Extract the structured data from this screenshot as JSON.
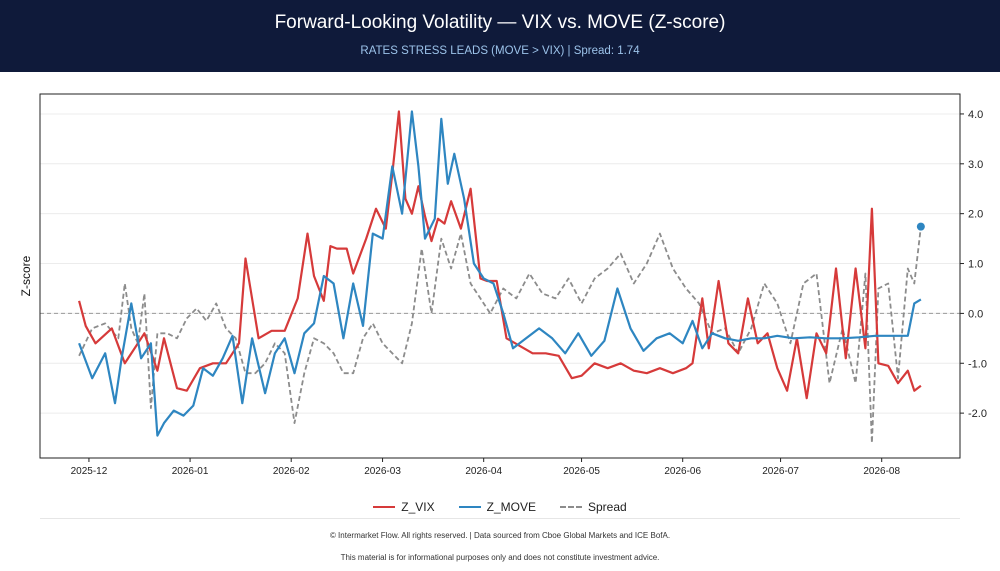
{
  "header": {
    "title": "Forward-Looking Volatility — VIX vs. MOVE (Z-score)",
    "subtitle": "RATES STRESS LEADS (MOVE > VIX)  |  Spread: 1.74"
  },
  "footer": {
    "line1": "© Intermarket Flow. All rights reserved.  |  Data sourced from Cboe Global Markets and ICE BofA.",
    "line2": "This material is for informational purposes only and does not constitute investment advice."
  },
  "chart_data": {
    "type": "line",
    "ylabel": "Z-score",
    "ylim": [
      -2.9,
      4.4
    ],
    "xlim": [
      "2025-11-16",
      "2026-08-25"
    ],
    "y_ticks": [
      "4.0",
      "3.0",
      "2.0",
      "1.0",
      "0.0",
      "-1.0",
      "-2.0"
    ],
    "y_tick_values": [
      4,
      3,
      2,
      1,
      0,
      -1,
      -2
    ],
    "x_ticks": [
      "2025-12",
      "2026-01",
      "2026-02",
      "2026-03",
      "2026-04",
      "2026-05",
      "2026-06",
      "2026-07",
      "2026-08"
    ],
    "x_tick_dates": [
      "2025-12-01",
      "2026-01-01",
      "2026-02-01",
      "2026-03-01",
      "2026-04-01",
      "2026-05-01",
      "2026-06-01",
      "2026-07-01",
      "2026-08-01"
    ],
    "grid": "horizontal",
    "y_axis_position": "right",
    "zero_line": true,
    "legend_position": "bottom",
    "series": [
      {
        "name": "Z_VIX",
        "color": "#d63a3a",
        "dash": false,
        "x": [
          "2025-11-28",
          "2025-11-30",
          "2025-12-03",
          "2025-12-08",
          "2025-12-12",
          "2025-12-16",
          "2025-12-18",
          "2025-12-22",
          "2025-12-24",
          "2025-12-28",
          "2025-12-31",
          "2026-01-04",
          "2026-01-08",
          "2026-01-12",
          "2026-01-16",
          "2026-01-18",
          "2026-01-22",
          "2026-01-26",
          "2026-01-30",
          "2026-02-03",
          "2026-02-06",
          "2026-02-08",
          "2026-02-11",
          "2026-02-13",
          "2026-02-15",
          "2026-02-18",
          "2026-02-20",
          "2026-02-24",
          "2026-02-27",
          "2026-03-02",
          "2026-03-04",
          "2026-03-06",
          "2026-03-08",
          "2026-03-10",
          "2026-03-12",
          "2026-03-14",
          "2026-03-16",
          "2026-03-18",
          "2026-03-20",
          "2026-03-22",
          "2026-03-25",
          "2026-03-28",
          "2026-03-31",
          "2026-04-02",
          "2026-04-05",
          "2026-04-08",
          "2026-04-12",
          "2026-04-16",
          "2026-04-20",
          "2026-04-24",
          "2026-04-28",
          "2026-05-01",
          "2026-05-05",
          "2026-05-09",
          "2026-05-13",
          "2026-05-17",
          "2026-05-21",
          "2026-05-25",
          "2026-05-29",
          "2026-06-02",
          "2026-06-04",
          "2026-06-07",
          "2026-06-09",
          "2026-06-12",
          "2026-06-15",
          "2026-06-18",
          "2026-06-21",
          "2026-06-24",
          "2026-06-27",
          "2026-06-30",
          "2026-07-03",
          "2026-07-06",
          "2026-07-09",
          "2026-07-12",
          "2026-07-15",
          "2026-07-18",
          "2026-07-21",
          "2026-07-24",
          "2026-07-27",
          "2026-07-29",
          "2026-07-31",
          "2026-08-03",
          "2026-08-06",
          "2026-08-09",
          "2026-08-11",
          "2026-08-13"
        ],
        "y": [
          0.25,
          -0.25,
          -0.6,
          -0.3,
          -1.0,
          -0.6,
          -0.4,
          -1.15,
          -0.5,
          -1.5,
          -1.55,
          -1.1,
          -1.0,
          -1.0,
          -0.6,
          1.1,
          -0.5,
          -0.35,
          -0.35,
          0.3,
          1.6,
          0.75,
          0.25,
          1.35,
          1.3,
          1.3,
          0.8,
          1.5,
          2.1,
          1.7,
          2.8,
          4.05,
          2.3,
          2.0,
          2.55,
          1.95,
          1.45,
          1.9,
          1.8,
          2.25,
          1.7,
          2.5,
          0.7,
          0.65,
          0.65,
          -0.5,
          -0.65,
          -0.8,
          -0.8,
          -0.85,
          -1.3,
          -1.25,
          -1.0,
          -1.1,
          -1.0,
          -1.15,
          -1.2,
          -1.1,
          -1.2,
          -1.1,
          -1.0,
          0.3,
          -0.7,
          0.65,
          -0.6,
          -0.8,
          0.3,
          -0.6,
          -0.4,
          -1.1,
          -1.55,
          -0.5,
          -1.7,
          -0.4,
          -0.8,
          0.9,
          -0.9,
          0.9,
          -0.7,
          2.1,
          -1.0,
          -1.05,
          -1.4,
          -1.15,
          -1.55,
          -1.45
        ]
      },
      {
        "name": "Z_MOVE",
        "color": "#2e86c1",
        "dash": false,
        "x": [
          "2025-11-28",
          "2025-12-02",
          "2025-12-06",
          "2025-12-09",
          "2025-12-11",
          "2025-12-14",
          "2025-12-17",
          "2025-12-20",
          "2025-12-22",
          "2025-12-24",
          "2025-12-27",
          "2025-12-30",
          "2026-01-02",
          "2026-01-05",
          "2026-01-08",
          "2026-01-11",
          "2026-01-14",
          "2026-01-17",
          "2026-01-20",
          "2026-01-24",
          "2026-01-27",
          "2026-01-30",
          "2026-02-02",
          "2026-02-05",
          "2026-02-08",
          "2026-02-11",
          "2026-02-14",
          "2026-02-17",
          "2026-02-20",
          "2026-02-23",
          "2026-02-26",
          "2026-03-01",
          "2026-03-04",
          "2026-03-07",
          "2026-03-10",
          "2026-03-12",
          "2026-03-14",
          "2026-03-17",
          "2026-03-19",
          "2026-03-21",
          "2026-03-23",
          "2026-03-26",
          "2026-03-29",
          "2026-04-01",
          "2026-04-04",
          "2026-04-07",
          "2026-04-10",
          "2026-04-14",
          "2026-04-18",
          "2026-04-22",
          "2026-04-26",
          "2026-04-30",
          "2026-05-04",
          "2026-05-08",
          "2026-05-12",
          "2026-05-16",
          "2026-05-20",
          "2026-05-24",
          "2026-05-28",
          "2026-06-01",
          "2026-06-04",
          "2026-06-07",
          "2026-06-10",
          "2026-06-14",
          "2026-06-18",
          "2026-06-22",
          "2026-06-26",
          "2026-06-30",
          "2026-07-05",
          "2026-07-10",
          "2026-07-15",
          "2026-07-20",
          "2026-07-25",
          "2026-07-30",
          "2026-08-04",
          "2026-08-09",
          "2026-08-11",
          "2026-08-13"
        ],
        "y": [
          -0.6,
          -1.3,
          -0.8,
          -1.8,
          -0.9,
          0.2,
          -0.9,
          -0.6,
          -2.45,
          -2.2,
          -1.95,
          -2.05,
          -1.85,
          -1.1,
          -1.25,
          -0.9,
          -0.45,
          -1.8,
          -0.5,
          -1.6,
          -0.8,
          -0.5,
          -1.2,
          -0.4,
          -0.2,
          0.75,
          0.6,
          -0.5,
          0.6,
          -0.25,
          1.6,
          1.5,
          2.95,
          2.0,
          4.05,
          2.95,
          1.5,
          1.9,
          3.9,
          2.6,
          3.2,
          2.3,
          1.0,
          0.7,
          0.6,
          0.0,
          -0.7,
          -0.5,
          -0.3,
          -0.5,
          -0.8,
          -0.4,
          -0.85,
          -0.55,
          0.5,
          -0.3,
          -0.75,
          -0.5,
          -0.4,
          -0.6,
          -0.15,
          -0.7,
          -0.4,
          -0.5,
          -0.55,
          -0.5,
          -0.5,
          -0.45,
          -0.5,
          -0.48,
          -0.5,
          -0.5,
          -0.48,
          -0.45,
          -0.45,
          -0.45,
          0.2,
          0.28
        ]
      },
      {
        "name": "Spread",
        "color": "#8c8c8c",
        "dash": true,
        "x": [
          "2025-11-28",
          "2025-12-02",
          "2025-12-06",
          "2025-12-10",
          "2025-12-12",
          "2025-12-14",
          "2025-12-16",
          "2025-12-18",
          "2025-12-20",
          "2025-12-22",
          "2025-12-25",
          "2025-12-28",
          "2025-12-31",
          "2026-01-03",
          "2026-01-06",
          "2026-01-09",
          "2026-01-12",
          "2026-01-15",
          "2026-01-18",
          "2026-01-21",
          "2026-01-24",
          "2026-01-27",
          "2026-01-30",
          "2026-02-02",
          "2026-02-05",
          "2026-02-08",
          "2026-02-11",
          "2026-02-14",
          "2026-02-17",
          "2026-02-20",
          "2026-02-23",
          "2026-02-26",
          "2026-03-01",
          "2026-03-04",
          "2026-03-07",
          "2026-03-10",
          "2026-03-13",
          "2026-03-16",
          "2026-03-19",
          "2026-03-22",
          "2026-03-25",
          "2026-03-28",
          "2026-03-31",
          "2026-04-03",
          "2026-04-07",
          "2026-04-11",
          "2026-04-15",
          "2026-04-19",
          "2026-04-23",
          "2026-04-27",
          "2026-05-01",
          "2026-05-05",
          "2026-05-09",
          "2026-05-13",
          "2026-05-17",
          "2026-05-21",
          "2026-05-25",
          "2026-05-29",
          "2026-06-02",
          "2026-06-06",
          "2026-06-10",
          "2026-06-14",
          "2026-06-18",
          "2026-06-22",
          "2026-06-26",
          "2026-06-30",
          "2026-07-04",
          "2026-07-08",
          "2026-07-12",
          "2026-07-16",
          "2026-07-20",
          "2026-07-24",
          "2026-07-27",
          "2026-07-29",
          "2026-07-31",
          "2026-08-03",
          "2026-08-06",
          "2026-08-09",
          "2026-08-11",
          "2026-08-13"
        ],
        "y": [
          -0.85,
          -0.3,
          -0.2,
          -0.5,
          0.6,
          -0.3,
          -0.6,
          0.4,
          -1.9,
          -0.4,
          -0.4,
          -0.5,
          -0.1,
          0.1,
          -0.15,
          0.2,
          -0.3,
          -0.5,
          -1.2,
          -1.2,
          -1.0,
          -0.6,
          -0.8,
          -2.2,
          -1.2,
          -0.5,
          -0.6,
          -0.8,
          -1.2,
          -1.2,
          -0.5,
          -0.2,
          -0.6,
          -0.8,
          -1.0,
          -0.2,
          1.3,
          0.0,
          1.5,
          0.9,
          1.6,
          0.6,
          0.3,
          0.0,
          0.5,
          0.3,
          0.8,
          0.4,
          0.3,
          0.7,
          0.2,
          0.7,
          0.9,
          1.2,
          0.6,
          1.0,
          1.6,
          0.9,
          0.5,
          0.2,
          -0.4,
          -0.3,
          -0.8,
          -0.3,
          0.6,
          0.2,
          -0.6,
          0.6,
          0.8,
          -1.4,
          -0.3,
          -1.4,
          0.8,
          -2.6,
          0.5,
          0.6,
          -1.3,
          0.9,
          0.6,
          1.74
        ]
      }
    ],
    "end_marker": {
      "series": "Spread",
      "x": "2026-08-13",
      "y": 1.74,
      "color": "#2e86c1"
    }
  }
}
